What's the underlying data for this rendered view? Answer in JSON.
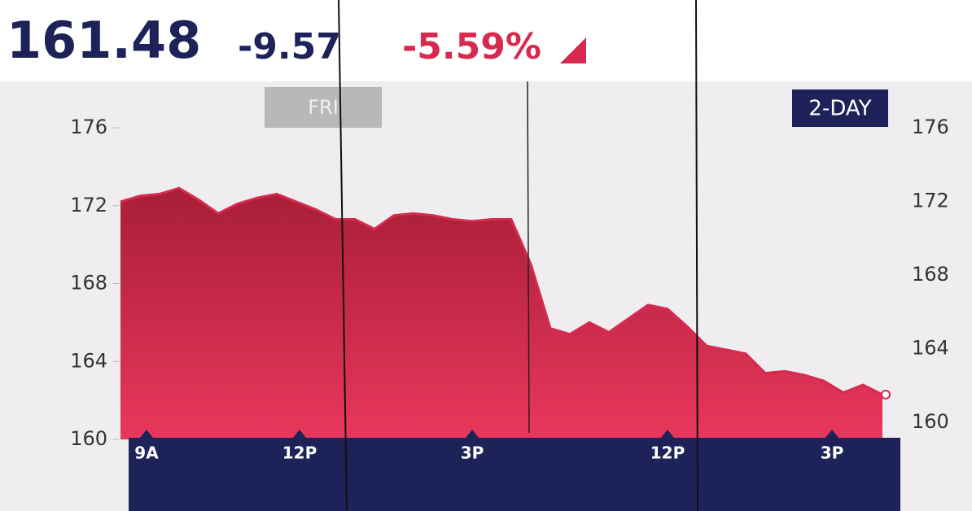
{
  "header": {
    "price": "161.48",
    "change": "-9.57",
    "percent": "-5.59%"
  },
  "chart_data": {
    "type": "area",
    "color": "#d62b4e",
    "day_label": "FRI",
    "range_label": "2-DAY",
    "values": [
      172.2,
      172.5,
      172.6,
      172.9,
      172.3,
      171.6,
      172.1,
      172.4,
      172.6,
      172.2,
      171.8,
      171.3,
      171.3,
      170.8,
      171.5,
      171.6,
      171.5,
      171.3,
      171.2,
      171.3,
      171.3,
      169.0,
      165.7,
      165.4,
      166.0,
      165.5,
      166.2,
      166.9,
      166.7,
      165.8,
      164.8,
      164.6,
      164.4,
      163.4,
      163.5,
      163.3,
      163.0,
      162.4,
      162.8,
      162.3
    ],
    "ylim": [
      160,
      176
    ],
    "yticks": [
      160,
      164,
      168,
      172,
      176
    ],
    "xtick_labels": [
      "9A",
      "12P",
      "3P",
      "12P",
      "3P"
    ]
  }
}
